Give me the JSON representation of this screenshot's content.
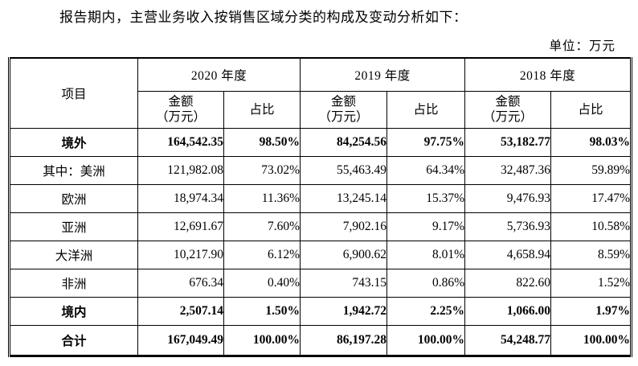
{
  "page": {
    "intro_text": "报告期内，主营业务收入按销售区域分类的构成及变动分析如下：",
    "unit_label": "单位：万元"
  },
  "table": {
    "item_header": "项目",
    "year_groups": [
      "2020 年度",
      "2019 年度",
      "2018 年度"
    ],
    "sub_headers": {
      "amount_line1": "金额",
      "amount_line2": "（万元）",
      "ratio": "占比"
    },
    "rows": [
      {
        "label": "境外",
        "bold": true,
        "values": [
          "164,542.35",
          "98.50%",
          "84,254.56",
          "97.75%",
          "53,182.77",
          "98.03%"
        ]
      },
      {
        "label": "其中：美洲",
        "bold": false,
        "values": [
          "121,982.08",
          "73.02%",
          "55,463.49",
          "64.34%",
          "32,487.36",
          "59.89%"
        ]
      },
      {
        "label": "欧洲",
        "bold": false,
        "values": [
          "18,974.34",
          "11.36%",
          "13,245.14",
          "15.37%",
          "9,476.93",
          "17.47%"
        ]
      },
      {
        "label": "亚洲",
        "bold": false,
        "values": [
          "12,691.67",
          "7.60%",
          "7,902.16",
          "9.17%",
          "5,736.93",
          "10.58%"
        ]
      },
      {
        "label": "大洋洲",
        "bold": false,
        "values": [
          "10,217.90",
          "6.12%",
          "6,900.62",
          "8.01%",
          "4,658.94",
          "8.59%"
        ]
      },
      {
        "label": "非洲",
        "bold": false,
        "values": [
          "676.34",
          "0.40%",
          "743.15",
          "0.86%",
          "822.60",
          "1.52%"
        ]
      },
      {
        "label": "境内",
        "bold": true,
        "values": [
          "2,507.14",
          "1.50%",
          "1,942.72",
          "2.25%",
          "1,066.00",
          "1.97%"
        ]
      },
      {
        "label": "合计",
        "bold": true,
        "values": [
          "167,049.49",
          "100.00%",
          "86,197.28",
          "100.00%",
          "54,248.77",
          "100.00%"
        ]
      }
    ]
  }
}
